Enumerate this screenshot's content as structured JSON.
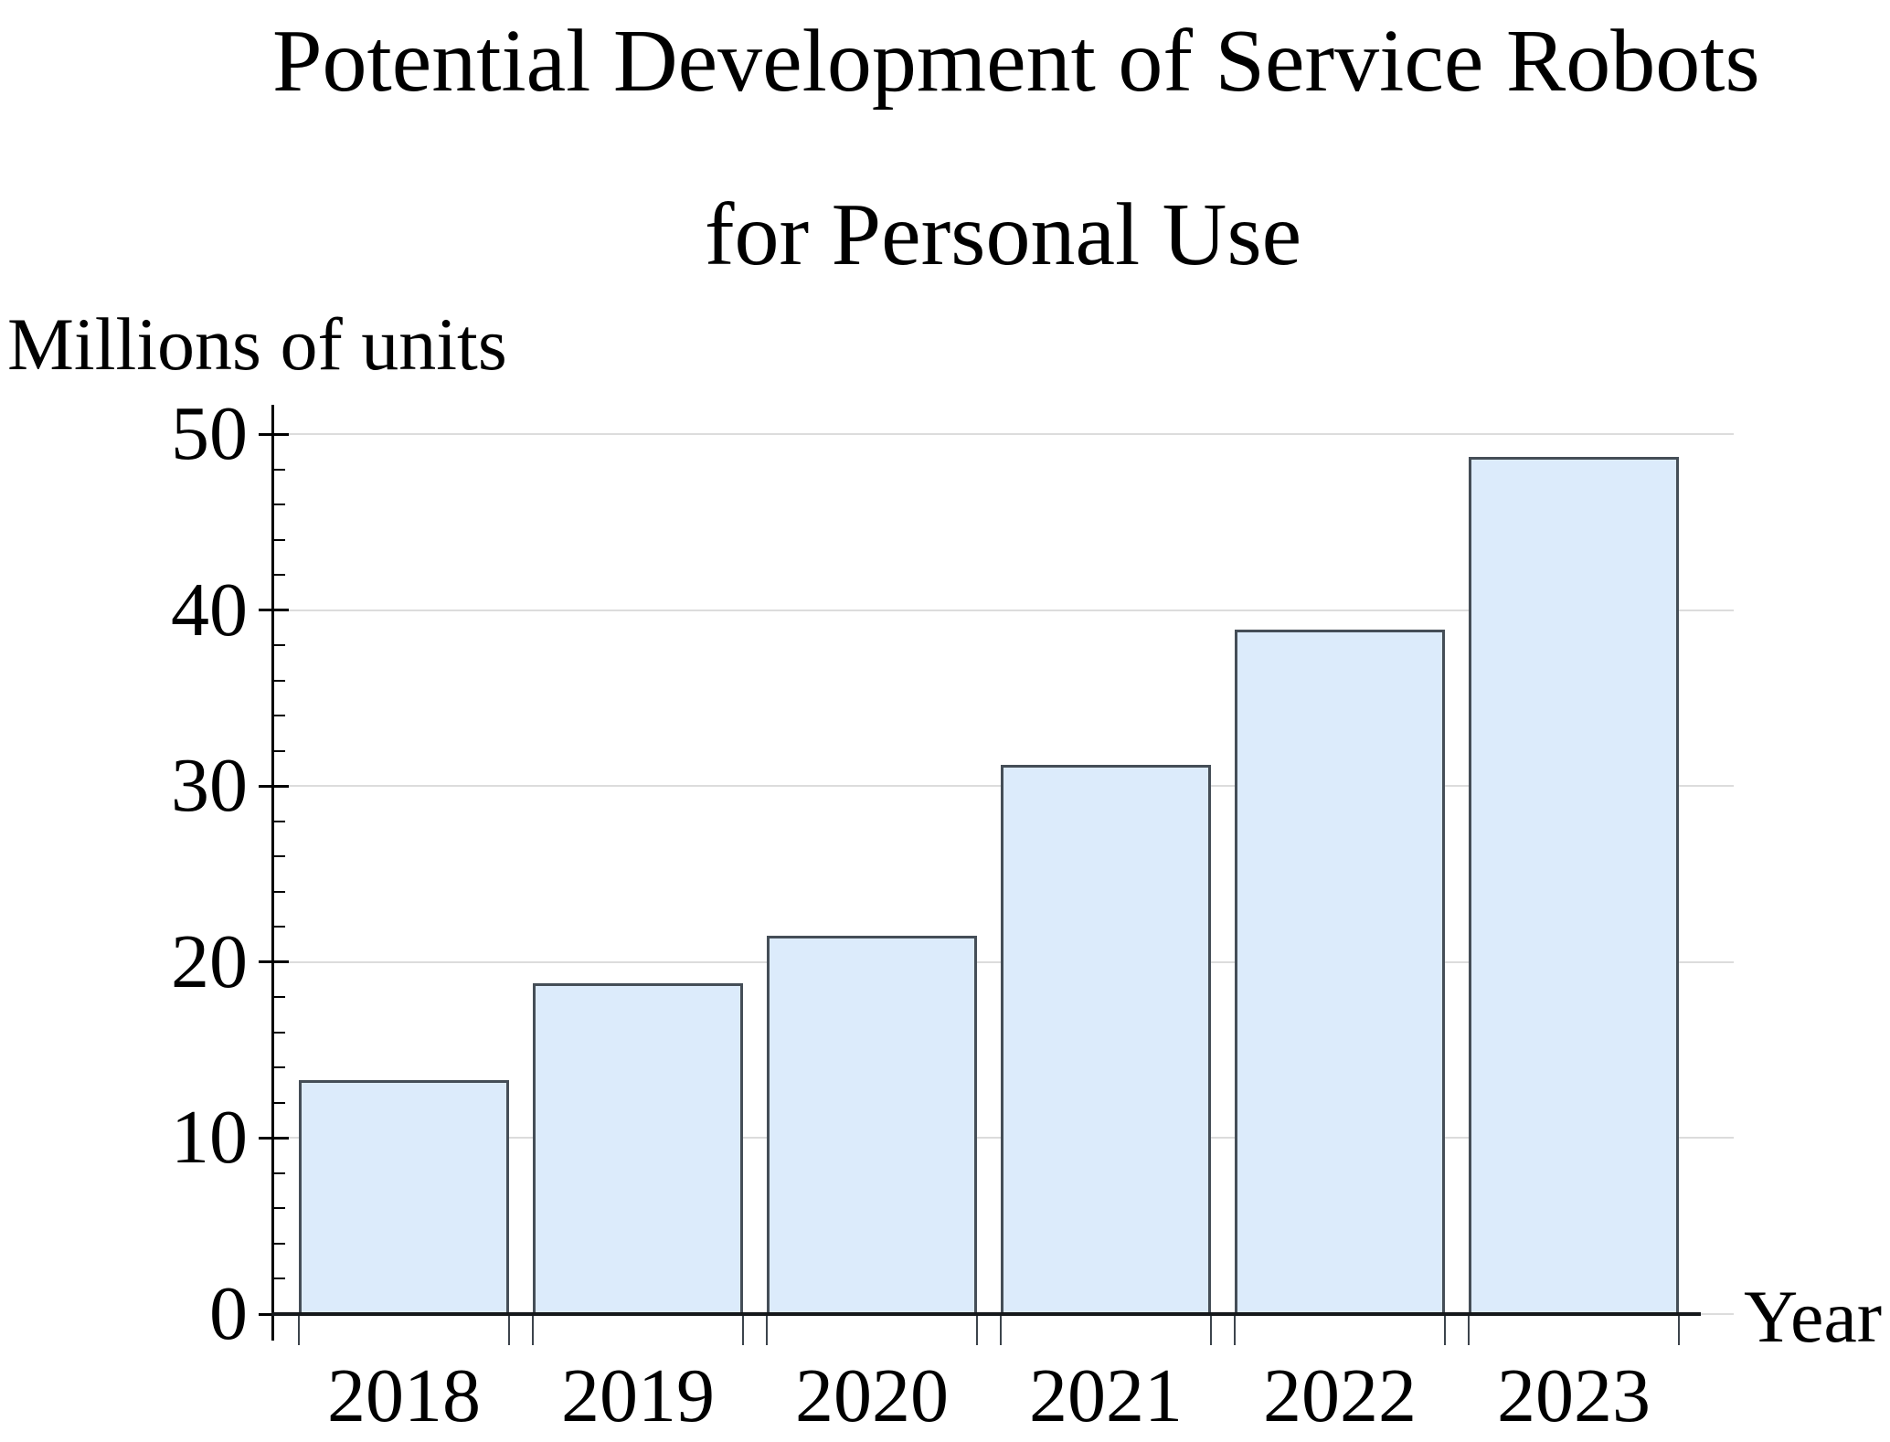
{
  "page": {
    "background": "#ffffff"
  },
  "chart_data": {
    "type": "bar",
    "title_line1": "Potential Development of Service Robots",
    "title_line2": "for Personal Use",
    "ylabel": "Millions of units",
    "xlabel": "Year",
    "categories": [
      "2018",
      "2019",
      "2020",
      "2021",
      "2022",
      "2023"
    ],
    "values": [
      13.3,
      18.8,
      21.5,
      31.2,
      38.9,
      48.7
    ],
    "ylim": [
      0,
      50
    ],
    "ytick_step": 10,
    "ytick_labels": [
      "0",
      "10",
      "20",
      "30",
      "40",
      "50"
    ],
    "yminor_step": 2,
    "grid": "horizontal-major-only",
    "legend": "none",
    "colors": {
      "bar_fill": "#dcebfb",
      "bar_border": "#454e57",
      "axis": "#000000",
      "baseline": "#15181b",
      "gridline": "#dcdcdc",
      "text": "#000000"
    }
  }
}
